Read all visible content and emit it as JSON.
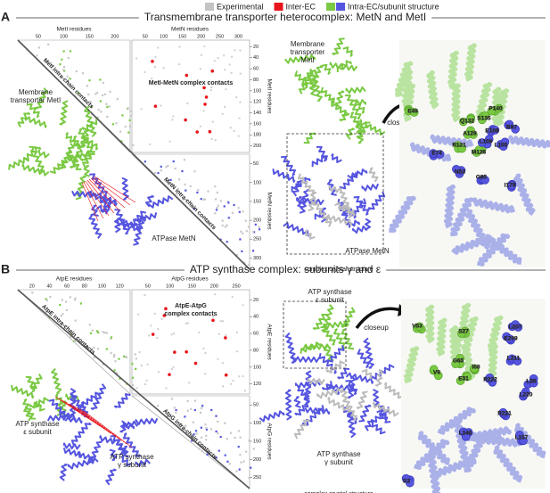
{
  "legend": {
    "items": [
      {
        "label": "Experimental",
        "color": "#c4c4c4"
      },
      {
        "label": "Inter-EC",
        "color": "#e8141c"
      },
      {
        "label": "Intra-EC/subunit structure",
        "colors": [
          "#7ac943",
          "#5555e0"
        ]
      }
    ]
  },
  "panels": [
    {
      "letter": "A",
      "title": "Transmembrane transporter heterocomplex: MetN and MetI",
      "contact_map": {
        "top_left": {
          "label": "MetI residues",
          "ticks": [
            "50",
            "100",
            "150",
            "200"
          ]
        },
        "top_right": {
          "label": "MetN residues",
          "ticks": [
            "50",
            "100",
            "150",
            "200",
            "250",
            "300"
          ]
        },
        "right_top": {
          "label": "MetI residues",
          "ticks": [
            "20",
            "40",
            "60",
            "80",
            "100",
            "120",
            "140",
            "160",
            "180",
            "200"
          ]
        },
        "right_bottom": {
          "label": "MetN residues",
          "ticks": [
            "50",
            "100",
            "150",
            "200",
            "250",
            "300"
          ]
        },
        "complex_label": [
          "MetI-MetN complex contacts"
        ],
        "intra_top": "MetI intra-chain contacts",
        "intra_bottom": "MetN intra-chain contacts"
      },
      "model_labels": {
        "green": [
          "Membrane",
          "transporter MetI"
        ],
        "blue": [
          "ATPase MetN"
        ]
      },
      "structure_labels": {
        "green": [
          "Membrane",
          "transporter",
          "MetI"
        ],
        "blue": [
          "ATPase MetN"
        ],
        "caption": "complex crystal structure"
      },
      "closeup": "closeup",
      "residues": {
        "green": [
          "E49",
          "P140",
          "S135",
          "Q132",
          "A128",
          "R121",
          "M126"
        ],
        "blue": [
          "E108",
          "R97",
          "L109",
          "L105",
          "E74",
          "N52",
          "G85",
          "I179"
        ]
      }
    },
    {
      "letter": "B",
      "title": "ATP synthase complex: subunits γ and ε",
      "contact_map": {
        "top_left": {
          "label": "AtpE residues",
          "ticks": [
            "20",
            "40",
            "60",
            "80",
            "100",
            "120"
          ]
        },
        "top_right": {
          "label": "AtpG residues",
          "ticks": [
            "50",
            "100",
            "150",
            "200",
            "250"
          ]
        },
        "right_top": {
          "label": "AtpE residues",
          "ticks": [
            "20",
            "40",
            "60",
            "80",
            "100",
            "120"
          ]
        },
        "right_bottom": {
          "label": "AtpG residues",
          "ticks": [
            "50",
            "100",
            "150",
            "200",
            "250"
          ]
        },
        "complex_label": [
          "AtpE-AtpG",
          "complex contacts"
        ],
        "intra_top": "AtpE intra-chain contacts",
        "intra_bottom": "AtpG intra-chain contacts"
      },
      "model_labels": {
        "green": [
          "ATP synthase",
          "ε subunit"
        ],
        "blue": [
          "ATP synthase",
          "γ subunit"
        ]
      },
      "structure_labels": {
        "green": [
          "ATP synthase",
          "ε subunit"
        ],
        "blue": [
          "ATP synthase",
          "γ subunit"
        ],
        "caption": "complex crystal structure"
      },
      "closeup": "closeup",
      "residues": {
        "green": [
          "V53",
          "S27",
          "G65",
          "V8",
          "I68",
          "E31"
        ],
        "blue": [
          "L207",
          "E209",
          "L211",
          "R222",
          "L56",
          "L220",
          "R221",
          "L146",
          "L157",
          "S3"
        ]
      }
    }
  ]
}
